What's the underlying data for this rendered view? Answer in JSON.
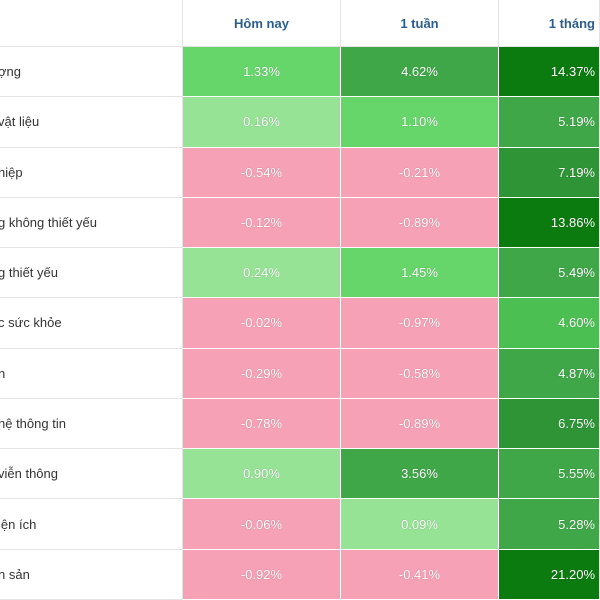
{
  "header": {
    "col1": "Hôm nay",
    "col2": "1 tuần",
    "col3": "1 tháng"
  },
  "rows": [
    {
      "sector": "ợng",
      "today": "1.33%",
      "week": "4.62%",
      "month": "14.37%"
    },
    {
      "sector": "vật liệu",
      "today": "0.16%",
      "week": "1.10%",
      "month": "5.19%"
    },
    {
      "sector": "hiệp",
      "today": "-0.54%",
      "week": "-0.21%",
      "month": "7.19%"
    },
    {
      "sector": "g không thiết yếu",
      "today": "-0.12%",
      "week": "-0.89%",
      "month": "13.86%"
    },
    {
      "sector": "g thiết yếu",
      "today": "0.24%",
      "week": "1.45%",
      "month": "5.49%"
    },
    {
      "sector": "c sức khỏe",
      "today": "-0.02%",
      "week": "-0.97%",
      "month": "4.60%"
    },
    {
      "sector": "n",
      "today": "-0.29%",
      "week": "-0.58%",
      "month": "4.87%"
    },
    {
      "sector": "hệ thông tin",
      "today": "-0.78%",
      "week": "-0.89%",
      "month": "6.75%"
    },
    {
      "sector": "viễn thông",
      "today": "0.90%",
      "week": "3.56%",
      "month": "5.55%"
    },
    {
      "sector": "iện ích",
      "today": "-0.06%",
      "week": "0.09%",
      "month": "5.28%"
    },
    {
      "sector": "n sản",
      "today": "-0.92%",
      "week": "-0.41%",
      "month": "21.20%"
    }
  ],
  "colors": {
    "negative": "#f7a1b6",
    "light_green": "#96e396",
    "green": "#66d66b",
    "dark_green": "#177a1c",
    "header_text": "#2a5d8f"
  }
}
